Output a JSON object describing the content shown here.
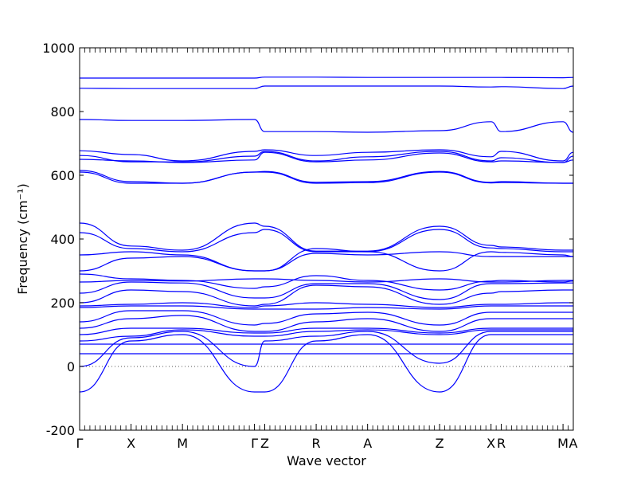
{
  "chart_data": {
    "type": "line",
    "title": "",
    "xlabel": "Wave vector",
    "ylabel": "Frequency (cm⁻¹)",
    "ylim": [
      -200,
      1000
    ],
    "yticks": [
      -200,
      0,
      200,
      400,
      600,
      800,
      1000
    ],
    "grid": false,
    "legend": "none",
    "line_color": "#0000ff",
    "zero_line": {
      "y": 0,
      "style": "dotted"
    },
    "path": [
      {
        "label": "Γ",
        "x": 0.0
      },
      {
        "label": "X",
        "x": 1.0
      },
      {
        "label": "M",
        "x": 2.0
      },
      {
        "label": "Γ",
        "x": 3.4
      },
      {
        "label": "Z",
        "x": 3.6
      },
      {
        "label": "R",
        "x": 4.6
      },
      {
        "label": "A",
        "x": 5.6
      },
      {
        "label": "Z",
        "x": 7.0
      },
      {
        "label": "X",
        "x": 8.0
      },
      {
        "label": "R",
        "x": 8.2
      },
      {
        "label": "M",
        "x": 9.4
      },
      {
        "label": "A",
        "x": 9.6
      }
    ],
    "series": [
      {
        "values": [
          905,
          905,
          905,
          905,
          908,
          908,
          907,
          907,
          907,
          907,
          906,
          907
        ]
      },
      {
        "values": [
          873,
          872,
          872,
          872,
          880,
          880,
          880,
          880,
          877,
          878,
          872,
          880
        ]
      },
      {
        "values": [
          775,
          772,
          772,
          775,
          737,
          737,
          735,
          740,
          768,
          737,
          768,
          735
        ]
      },
      {
        "values": [
          677,
          665,
          645,
          675,
          680,
          662,
          672,
          680,
          658,
          675,
          645,
          672
        ]
      },
      {
        "values": [
          662,
          642,
          642,
          660,
          675,
          645,
          658,
          675,
          645,
          655,
          640,
          660
        ]
      },
      {
        "values": [
          650,
          645,
          640,
          648,
          672,
          642,
          648,
          670,
          642,
          645,
          640,
          648
        ]
      },
      {
        "values": [
          615,
          580,
          575,
          610,
          612,
          578,
          580,
          612,
          578,
          580,
          575,
          575
        ]
      },
      {
        "values": [
          610,
          575,
          575,
          610,
          610,
          575,
          577,
          610,
          576,
          577,
          575,
          575
        ]
      },
      {
        "values": [
          450,
          378,
          365,
          450,
          440,
          362,
          362,
          440,
          380,
          375,
          365,
          365
        ]
      },
      {
        "values": [
          420,
          370,
          360,
          420,
          430,
          360,
          360,
          430,
          372,
          370,
          360,
          360
        ]
      },
      {
        "values": [
          350,
          360,
          350,
          300,
          300,
          370,
          360,
          300,
          360,
          358,
          350,
          345
        ]
      },
      {
        "values": [
          300,
          340,
          345,
          300,
          300,
          355,
          350,
          360,
          345,
          345,
          345,
          345
        ]
      },
      {
        "values": [
          290,
          275,
          270,
          245,
          250,
          285,
          270,
          240,
          268,
          270,
          265,
          268
        ]
      },
      {
        "values": [
          265,
          270,
          268,
          275,
          275,
          270,
          265,
          275,
          265,
          265,
          270,
          270
        ]
      },
      {
        "values": [
          230,
          265,
          262,
          215,
          215,
          260,
          260,
          210,
          260,
          260,
          262,
          262
        ]
      },
      {
        "values": [
          200,
          240,
          235,
          190,
          195,
          255,
          250,
          195,
          230,
          235,
          240,
          240
        ]
      },
      {
        "values": [
          190,
          195,
          200,
          185,
          190,
          200,
          195,
          185,
          195,
          195,
          200,
          200
        ]
      },
      {
        "values": [
          185,
          190,
          190,
          180,
          180,
          180,
          185,
          180,
          190,
          190,
          190,
          190
        ]
      },
      {
        "values": [
          140,
          175,
          175,
          130,
          135,
          165,
          170,
          130,
          170,
          170,
          170,
          170
        ]
      },
      {
        "values": [
          120,
          150,
          160,
          110,
          110,
          140,
          150,
          110,
          150,
          150,
          150,
          150
        ]
      },
      {
        "values": [
          100,
          120,
          120,
          105,
          105,
          120,
          120,
          105,
          120,
          120,
          120,
          120
        ]
      },
      {
        "values": [
          80,
          95,
          115,
          95,
          95,
          110,
          115,
          100,
          115,
          115,
          115,
          115
        ]
      },
      {
        "values": [
          0,
          90,
          110,
          0,
          80,
          95,
          110,
          10,
          110,
          110,
          110,
          110
        ]
      },
      {
        "values": [
          40,
          40,
          40,
          40,
          40,
          40,
          40,
          40,
          40,
          40,
          40,
          40
        ]
      },
      {
        "values": [
          70,
          70,
          70,
          70,
          70,
          70,
          70,
          70,
          70,
          70,
          70,
          70
        ]
      },
      {
        "values": [
          -80,
          80,
          100,
          -80,
          -80,
          80,
          100,
          -80,
          100,
          100,
          100,
          100
        ]
      }
    ]
  }
}
